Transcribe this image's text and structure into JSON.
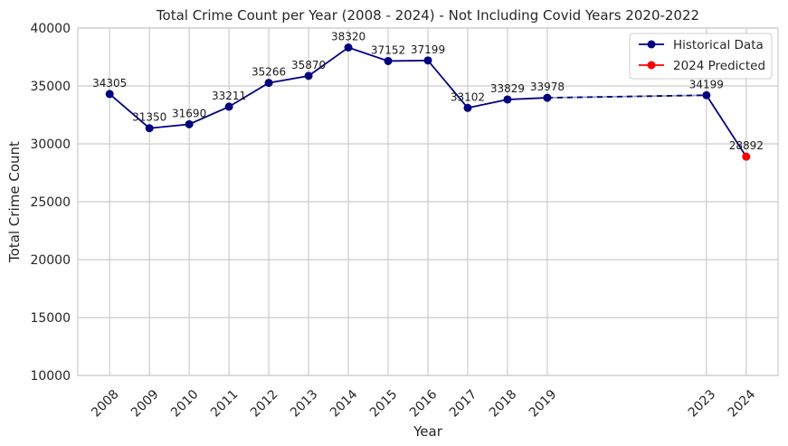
{
  "chart_data": {
    "type": "line",
    "title": "Total Crime Count per Year (2008 - 2024) - Not Including Covid Years 2020-2022",
    "xlabel": "Year",
    "ylabel": "Total Crime Count",
    "ylim": [
      10000,
      40000
    ],
    "xlim": [
      2007.2,
      2024.8
    ],
    "yticks": [
      10000,
      15000,
      20000,
      25000,
      30000,
      35000,
      40000
    ],
    "xticks": [
      2008,
      2009,
      2010,
      2011,
      2012,
      2013,
      2014,
      2015,
      2016,
      2017,
      2018,
      2019,
      2023,
      2024
    ],
    "grid": true,
    "legend_position": "top-right",
    "series": [
      {
        "name": "Historical Data",
        "color": "#000080",
        "x": [
          2008,
          2009,
          2010,
          2011,
          2012,
          2013,
          2014,
          2015,
          2016,
          2017,
          2018,
          2019,
          2023
        ],
        "values": [
          34305,
          31350,
          31690,
          33211,
          35266,
          35870,
          38320,
          37152,
          37199,
          33102,
          33829,
          33978,
          34199
        ]
      },
      {
        "name": "2024 Predicted",
        "color": "#ff0000",
        "x": [
          2024
        ],
        "values": [
          28892
        ]
      }
    ],
    "gap_line": {
      "from": 2019,
      "to": 2023,
      "style": "dashed"
    }
  }
}
